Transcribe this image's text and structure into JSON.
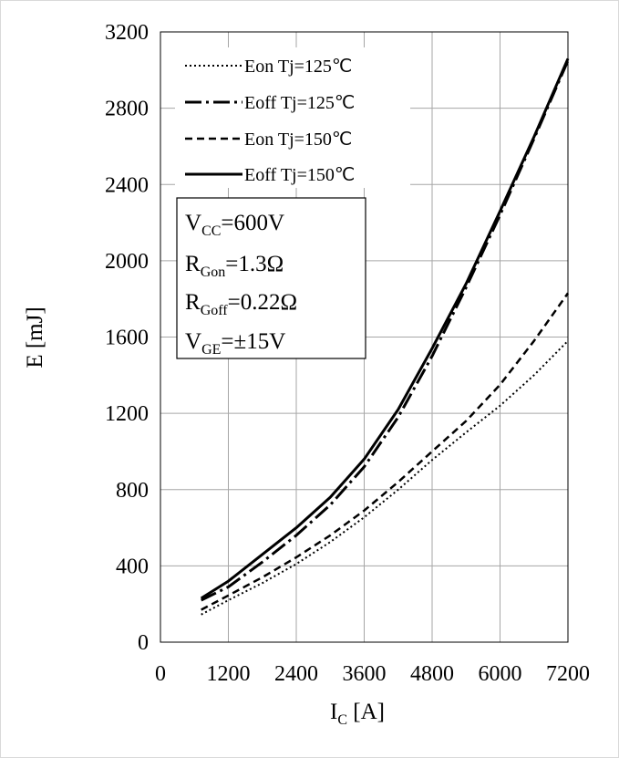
{
  "chart_data": {
    "type": "line",
    "title": "",
    "ylabel": "E [mJ]",
    "xlabel": {
      "main": "I",
      "sub": "C",
      "unit": " [A]"
    },
    "xlim": [
      0,
      7200
    ],
    "ylim": [
      0,
      3200
    ],
    "xticks": [
      0,
      1200,
      2400,
      3600,
      4800,
      6000,
      7200
    ],
    "yticks": [
      0,
      400,
      800,
      1200,
      1600,
      2000,
      2400,
      2800,
      3200
    ],
    "x_tick_labels": [
      "0",
      "1200",
      "2400",
      "3600",
      "4800",
      "6000",
      "7200"
    ],
    "y_tick_labels": [
      "0",
      "400",
      "800",
      "1200",
      "1600",
      "2000",
      "2400",
      "2800",
      "3200"
    ],
    "grid": true,
    "legend_position": "top-left",
    "series": [
      {
        "name": "Eon Tj=125℃",
        "style": "dotted",
        "x": [
          720,
          1200,
          1800,
          2400,
          3000,
          3600,
          4200,
          4800,
          5400,
          6000,
          6600,
          7200
        ],
        "y": [
          145,
          220,
          310,
          410,
          525,
          655,
          800,
          955,
          1100,
          1240,
          1400,
          1580
        ]
      },
      {
        "name": "Eoff Tj=125℃",
        "style": "dashdot",
        "x": [
          720,
          1200,
          1800,
          2400,
          3000,
          3600,
          4200,
          4800,
          5400,
          6000,
          6600,
          7200
        ],
        "y": [
          220,
          290,
          420,
          560,
          720,
          920,
          1180,
          1500,
          1860,
          2240,
          2640,
          3050
        ]
      },
      {
        "name": "Eon Tj=150℃",
        "style": "dashed",
        "x": [
          720,
          1200,
          1800,
          2400,
          3000,
          3600,
          4200,
          4800,
          5400,
          6000,
          6600,
          7200
        ],
        "y": [
          170,
          245,
          340,
          445,
          560,
          690,
          840,
          1000,
          1160,
          1350,
          1580,
          1830
        ]
      },
      {
        "name": "Eoff Tj=150℃",
        "style": "solid",
        "x": [
          720,
          1200,
          1800,
          2400,
          3000,
          3600,
          4200,
          4800,
          5400,
          6000,
          6600,
          7200
        ],
        "y": [
          230,
          320,
          460,
          600,
          760,
          960,
          1220,
          1540,
          1880,
          2260,
          2650,
          3060
        ]
      }
    ],
    "conditions": [
      {
        "main": "V",
        "sub": "CC",
        "rest": "=600V"
      },
      {
        "main": "R",
        "sub": "Gon",
        "rest": "=1.3Ω"
      },
      {
        "main": "R",
        "sub": "Goff",
        "rest": "=0.22Ω"
      },
      {
        "main": "V",
        "sub": "GE",
        "rest": "=±15V"
      }
    ]
  },
  "colors": {
    "line": "#000000",
    "grid": "#a6a6a6",
    "border": "#d9d9d9"
  }
}
